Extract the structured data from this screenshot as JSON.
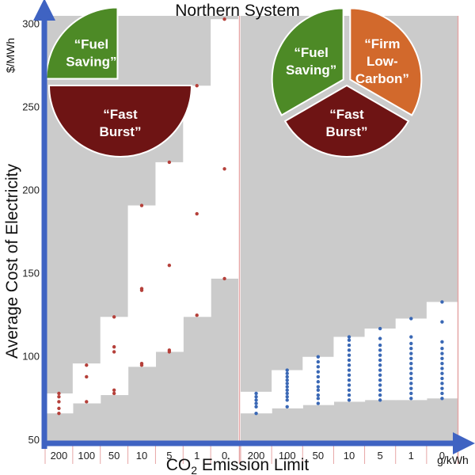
{
  "chart_data": {
    "type": "range-bar-scatter",
    "title": "Northern System",
    "xlabel": "CO2 Emission Limit",
    "xunit": "g/kWh",
    "ylabel": "Average Cost of Electricity",
    "yunit": "$/MWh",
    "ylim": [
      48,
      305
    ],
    "yticks": [
      50,
      100,
      150,
      200,
      250,
      300
    ],
    "categories": [
      "200",
      "100",
      "50",
      "10",
      "5",
      "1",
      "0"
    ],
    "panels": [
      {
        "name": "left",
        "marker_color": "#b5403a",
        "pie": [
          {
            "label_lines": [
              "“Fuel",
              "Saving”"
            ],
            "color": "#4d8a26"
          },
          {
            "label_lines": [
              "“Fast",
              "Burst”"
            ],
            "color": "#6e1414"
          }
        ],
        "ranges": [
          [
            66,
            78
          ],
          [
            72,
            96
          ],
          [
            77,
            124
          ],
          [
            94,
            191
          ],
          [
            103,
            217
          ],
          [
            124,
            263
          ],
          [
            147,
            303
          ]
        ],
        "points": [
          [
            66,
            69,
            73,
            76,
            78
          ],
          [
            73,
            88,
            95
          ],
          [
            78,
            80,
            103,
            106,
            124
          ],
          [
            95,
            96,
            140,
            141,
            191
          ],
          [
            103,
            104,
            155,
            217
          ],
          [
            125,
            186,
            263
          ],
          [
            147,
            213,
            303
          ]
        ]
      },
      {
        "name": "right",
        "marker_color": "#3a68b5",
        "pie": [
          {
            "label_lines": [
              "“Fuel",
              "Saving”"
            ],
            "color": "#4d8a26"
          },
          {
            "label_lines": [
              "“Firm",
              "Low-",
              "Carbon”"
            ],
            "color": "#d2692c"
          },
          {
            "label_lines": [
              "“Fast",
              "Burst”"
            ],
            "color": "#6e1414"
          }
        ],
        "ranges": [
          [
            66,
            79
          ],
          [
            69,
            92
          ],
          [
            71,
            100
          ],
          [
            73,
            112
          ],
          [
            74,
            117
          ],
          [
            74,
            123
          ],
          [
            75,
            133
          ]
        ],
        "points": [
          [
            66,
            70,
            72,
            74,
            76,
            78
          ],
          [
            70,
            74,
            76,
            78,
            80,
            82,
            84,
            86,
            88,
            90,
            92
          ],
          [
            72,
            75,
            77,
            80,
            82,
            85,
            88,
            91,
            94,
            97,
            100
          ],
          [
            74,
            77,
            80,
            83,
            86,
            89,
            92,
            95,
            98,
            101,
            104,
            107,
            110,
            112
          ],
          [
            74,
            77,
            80,
            83,
            86,
            89,
            92,
            95,
            98,
            101,
            104,
            107,
            111,
            117
          ],
          [
            75,
            78,
            81,
            84,
            87,
            90,
            93,
            96,
            99,
            102,
            105,
            108,
            112,
            123
          ],
          [
            75,
            78,
            81,
            84,
            87,
            90,
            93,
            96,
            99,
            102,
            105,
            109,
            121,
            133
          ]
        ]
      }
    ]
  }
}
